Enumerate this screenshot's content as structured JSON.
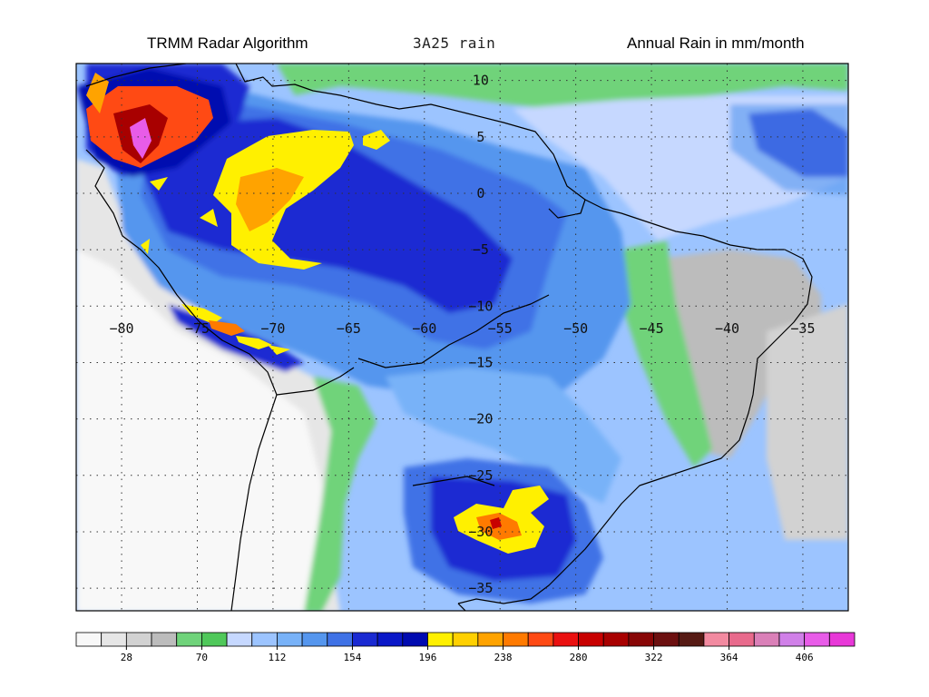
{
  "header": {
    "left_title": "TRMM Radar Algorithm",
    "center_title": "3A25 rain",
    "right_title": "Annual Rain in mm/month"
  },
  "map": {
    "lon_range": [
      -83,
      -32
    ],
    "lat_range": [
      -37,
      11.5
    ],
    "lon_ticks": [
      -80,
      -75,
      -70,
      -65,
      -60,
      -55,
      -50,
      -45,
      -40,
      -35
    ],
    "lat_ticks": [
      10,
      5,
      0,
      -5,
      -10,
      -15,
      -20,
      -25,
      -30,
      -35
    ],
    "lon_tick_labels": [
      "−80",
      "−75",
      "−70",
      "−65",
      "−60",
      "−55",
      "−50",
      "−45",
      "−40",
      "−35"
    ],
    "lat_tick_labels": [
      "10",
      "5",
      "0",
      "−5",
      "−10",
      "−15",
      "−20",
      "−25",
      "−30",
      "−35"
    ],
    "label_lat": -12,
    "label_lon": -57,
    "grid": "dotted"
  },
  "colorbar": {
    "unit": "mm/month",
    "levels": [
      0,
      14,
      28,
      42,
      56,
      70,
      84,
      98,
      112,
      126,
      140,
      154,
      168,
      182,
      196,
      210,
      224,
      238,
      252,
      266,
      280,
      294,
      308,
      322,
      336,
      350,
      364,
      378,
      392,
      406,
      420,
      434
    ],
    "tick_labels": [
      "28",
      "70",
      "112",
      "154",
      "196",
      "238",
      "280",
      "322",
      "364",
      "406"
    ],
    "tick_values": [
      28,
      70,
      112,
      154,
      196,
      238,
      280,
      322,
      364,
      406
    ],
    "colors": [
      "#f8f8f8",
      "#e6e6e6",
      "#d2d2d2",
      "#bcbcbc",
      "#6fd37a",
      "#4fc85a",
      "#c6d8ff",
      "#9cc4ff",
      "#78b2f8",
      "#5596ee",
      "#3f72e6",
      "#1a2ad2",
      "#0a18c8",
      "#000ab0",
      "#fff000",
      "#ffd000",
      "#ffa300",
      "#ff7a00",
      "#ff4a14",
      "#ea1010",
      "#c80000",
      "#a80000",
      "#880606",
      "#6c1010",
      "#561a14",
      "#f28aa0",
      "#e86a8c",
      "#da80b8",
      "#d080e8",
      "#e85ce8",
      "#e838d8"
    ]
  }
}
